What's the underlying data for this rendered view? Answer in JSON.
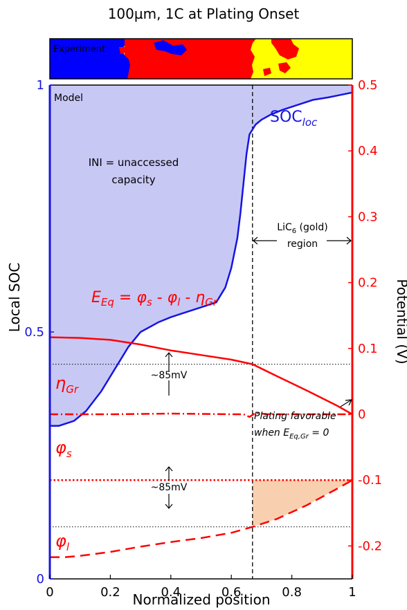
{
  "chart_data": {
    "type": "line",
    "title": "100µm, 1C at Plating Onset",
    "xlabel": "Normalized position",
    "ylabel_left": "Local SOC",
    "ylabel_right": "Potential (V)",
    "xlim": [
      0,
      1
    ],
    "ylim_left": [
      0,
      1
    ],
    "ylim_right": [
      -0.25,
      0.5
    ],
    "x_ticks": [
      "0",
      "0.2",
      "0.4",
      "0.6",
      "0.8",
      "1"
    ],
    "y_left_ticks": [
      "0",
      "0.5",
      "1"
    ],
    "y_right_ticks": [
      "-0.2",
      "-0.1",
      "0",
      "0.1",
      "0.2",
      "0.3",
      "0.4",
      "0.5"
    ],
    "experiment_strip": {
      "label": "Experiment",
      "colors": {
        "blue": "#0000ff",
        "red": "#ff0000",
        "yellow": "#ffff00"
      }
    },
    "model_label": "Model",
    "series": [
      {
        "name": "SOC_loc",
        "axis": "left",
        "color": "#1515e0",
        "x": [
          0,
          0.03,
          0.08,
          0.12,
          0.17,
          0.22,
          0.26,
          0.3,
          0.33,
          0.36,
          0.4,
          0.45,
          0.5,
          0.55,
          0.58,
          0.6,
          0.62,
          0.63,
          0.64,
          0.65,
          0.66,
          0.67,
          0.68,
          0.7,
          0.73,
          0.77,
          0.82,
          0.87,
          0.92,
          0.96,
          1.0
        ],
        "y": [
          0.31,
          0.31,
          0.32,
          0.34,
          0.38,
          0.43,
          0.47,
          0.5,
          0.51,
          0.52,
          0.53,
          0.54,
          0.55,
          0.56,
          0.59,
          0.63,
          0.69,
          0.74,
          0.8,
          0.86,
          0.9,
          0.91,
          0.92,
          0.93,
          0.94,
          0.95,
          0.96,
          0.97,
          0.975,
          0.98,
          0.985
        ]
      },
      {
        "name": "E_Eq",
        "axis": "right",
        "color": "#ff0000",
        "style": "solid",
        "x": [
          0,
          0.1,
          0.2,
          0.3,
          0.4,
          0.5,
          0.6,
          0.67,
          0.75,
          0.85,
          0.95,
          1.0
        ],
        "y": [
          0.117,
          0.116,
          0.113,
          0.106,
          0.097,
          0.09,
          0.083,
          0.076,
          0.058,
          0.036,
          0.013,
          0.0
        ]
      },
      {
        "name": "eta_Gr",
        "axis": "right",
        "color": "#ff0000",
        "style": "dash-dot",
        "x": [
          0,
          0.2,
          0.4,
          0.6,
          0.64,
          0.66,
          0.68,
          0.72,
          0.8,
          0.9,
          1.0
        ],
        "y": [
          0.0,
          0.0,
          0.001,
          0.0,
          0.0,
          -0.004,
          0.002,
          0.0,
          0.0,
          0.0,
          0.0
        ]
      },
      {
        "name": "phi_s",
        "axis": "right",
        "color": "#ff0000",
        "style": "dotted",
        "x": [
          0,
          1
        ],
        "y": [
          -0.1,
          -0.1
        ]
      },
      {
        "name": "phi_l",
        "axis": "right",
        "color": "#ff0000",
        "style": "dashed",
        "x": [
          0,
          0.05,
          0.1,
          0.2,
          0.3,
          0.4,
          0.5,
          0.6,
          0.67,
          0.75,
          0.85,
          0.95,
          1.0
        ],
        "y": [
          -0.217,
          -0.217,
          -0.215,
          -0.209,
          -0.201,
          -0.194,
          -0.188,
          -0.18,
          -0.171,
          -0.159,
          -0.138,
          -0.113,
          -0.1
        ]
      }
    ],
    "reference_lines": [
      {
        "axis": "right",
        "y": 0.076,
        "style": "dotted",
        "color": "#000000"
      },
      {
        "axis": "right",
        "y": -0.171,
        "style": "dotted",
        "color": "#000000"
      },
      {
        "axis": "x",
        "x": 0.67,
        "style": "dashed",
        "color": "#000000"
      }
    ],
    "fills": [
      {
        "name": "unaccessed-capacity",
        "color": "#c8c8f5"
      },
      {
        "name": "plating-region",
        "color": "#f8d0b0"
      }
    ],
    "annotations": {
      "soc_label_main": "SOC",
      "soc_label_sub": "loc",
      "ini_line1": "INI = unaccessed",
      "ini_line2": "capacity",
      "lic6_line1_main": "LiC",
      "lic6_line1_sub": "6",
      "lic6_line1_rest": " (gold)",
      "lic6_line2": "region",
      "eeq_eq": "E_Eq = φ_s - φ_l - η_Gr",
      "eeq_E": "E",
      "eeq_E_sub": "Eq",
      "eeq_eq_sign": " = ",
      "eeq_phi": "φ",
      "eeq_s": "s",
      "eeq_minus": " - ",
      "eeq_l": "l",
      "eeq_eta": "η",
      "eeq_Gr": "Gr",
      "eta_label": "η",
      "eta_sub": "Gr",
      "phis_label": "φ",
      "phis_sub": "s",
      "phil_label": "φ",
      "phil_sub": "l",
      "mv_upper": "~85mV",
      "mv_lower": "~85mV",
      "plating_line1": "Plating favorable",
      "plating_line2_a": "when E",
      "plating_line2_sub": "Eq,Gr",
      "plating_line2_b": " = 0"
    }
  }
}
